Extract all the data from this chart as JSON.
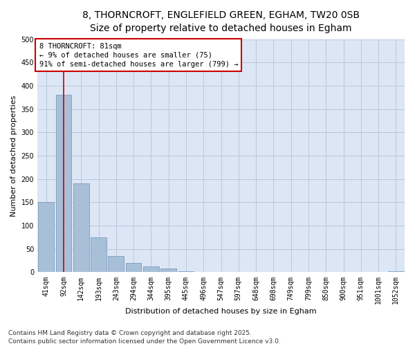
{
  "title_line1": "8, THORNCROFT, ENGLEFIELD GREEN, EGHAM, TW20 0SB",
  "title_line2": "Size of property relative to detached houses in Egham",
  "xlabel": "Distribution of detached houses by size in Egham",
  "ylabel": "Number of detached properties",
  "fig_background_color": "#ffffff",
  "plot_background_color": "#dce6f5",
  "bar_color": "#a8bfd8",
  "bar_edge_color": "#7090b8",
  "categories": [
    "41sqm",
    "92sqm",
    "142sqm",
    "193sqm",
    "243sqm",
    "294sqm",
    "344sqm",
    "395sqm",
    "445sqm",
    "496sqm",
    "547sqm",
    "597sqm",
    "648sqm",
    "698sqm",
    "749sqm",
    "799sqm",
    "850sqm",
    "900sqm",
    "951sqm",
    "1001sqm",
    "1052sqm"
  ],
  "values": [
    150,
    380,
    190,
    75,
    35,
    20,
    13,
    8,
    2,
    0,
    0,
    0,
    0,
    0,
    0,
    0,
    0,
    0,
    0,
    0,
    2
  ],
  "ylim": [
    0,
    500
  ],
  "yticks": [
    0,
    50,
    100,
    150,
    200,
    250,
    300,
    350,
    400,
    450,
    500
  ],
  "annotation_text": "8 THORNCROFT: 81sqm\n← 9% of detached houses are smaller (75)\n91% of semi-detached houses are larger (799) →",
  "annotation_box_facecolor": "#ffffff",
  "annotation_border_color": "#cc0000",
  "vline_x": 1,
  "vline_color": "#cc0000",
  "footer_line1": "Contains HM Land Registry data © Crown copyright and database right 2025.",
  "footer_line2": "Contains public sector information licensed under the Open Government Licence v3.0.",
  "grid_color": "#b8c8dc",
  "title_fontsize": 10,
  "subtitle_fontsize": 9,
  "axis_label_fontsize": 8,
  "tick_fontsize": 7,
  "annotation_fontsize": 7.5,
  "footer_fontsize": 6.5
}
